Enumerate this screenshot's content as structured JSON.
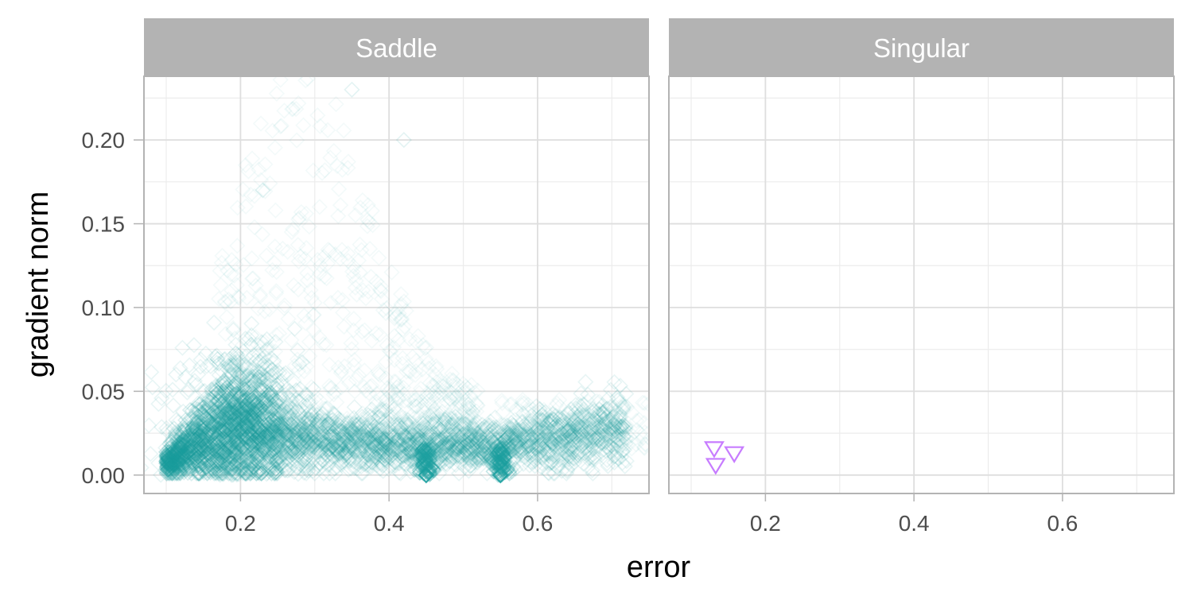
{
  "chart_data": {
    "type": "scatter",
    "xlabel": "error",
    "ylabel": "gradient norm",
    "xlim": [
      0.07,
      0.75
    ],
    "ylim": [
      -0.011,
      0.238
    ],
    "x_ticks": [
      0.2,
      0.4,
      0.6
    ],
    "x_tick_labels": [
      "0.2",
      "0.4",
      "0.6"
    ],
    "y_ticks": [
      0.0,
      0.05,
      0.1,
      0.15,
      0.2
    ],
    "y_tick_labels": [
      "0.00",
      "0.05",
      "0.10",
      "0.15",
      "0.20"
    ],
    "grid": true,
    "legend": "none",
    "panels": [
      {
        "name": "Saddle",
        "marker": "diamond-open",
        "color": "#1a9e9e",
        "opacity": "low (dense overplotting)",
        "distribution": {
          "main_band": [
            [
              0.1,
              0.007
            ],
            [
              0.12,
              0.012
            ],
            [
              0.15,
              0.022
            ],
            [
              0.2,
              0.03
            ],
            [
              0.3,
              0.021
            ],
            [
              0.4,
              0.018
            ],
            [
              0.45,
              0.017
            ],
            [
              0.5,
              0.018
            ],
            [
              0.55,
              0.018
            ],
            [
              0.6,
              0.02
            ],
            [
              0.65,
              0.024
            ],
            [
              0.7,
              0.027
            ]
          ],
          "peak": [
            0.2,
            0.05
          ],
          "clusters_at_zero_gradient": [
            [
              0.45,
              0.0
            ],
            [
              0.55,
              0.0
            ]
          ],
          "sparse_max": [
            [
              0.23,
              0.17
            ],
            [
              0.35,
              0.23
            ],
            [
              0.42,
              0.2
            ]
          ]
        }
      },
      {
        "name": "Singular",
        "marker": "triangle-down-open",
        "color": "#c77cff",
        "points": [
          [
            0.131,
            0.016
          ],
          [
            0.133,
            0.006
          ],
          [
            0.158,
            0.013
          ]
        ]
      }
    ]
  }
}
